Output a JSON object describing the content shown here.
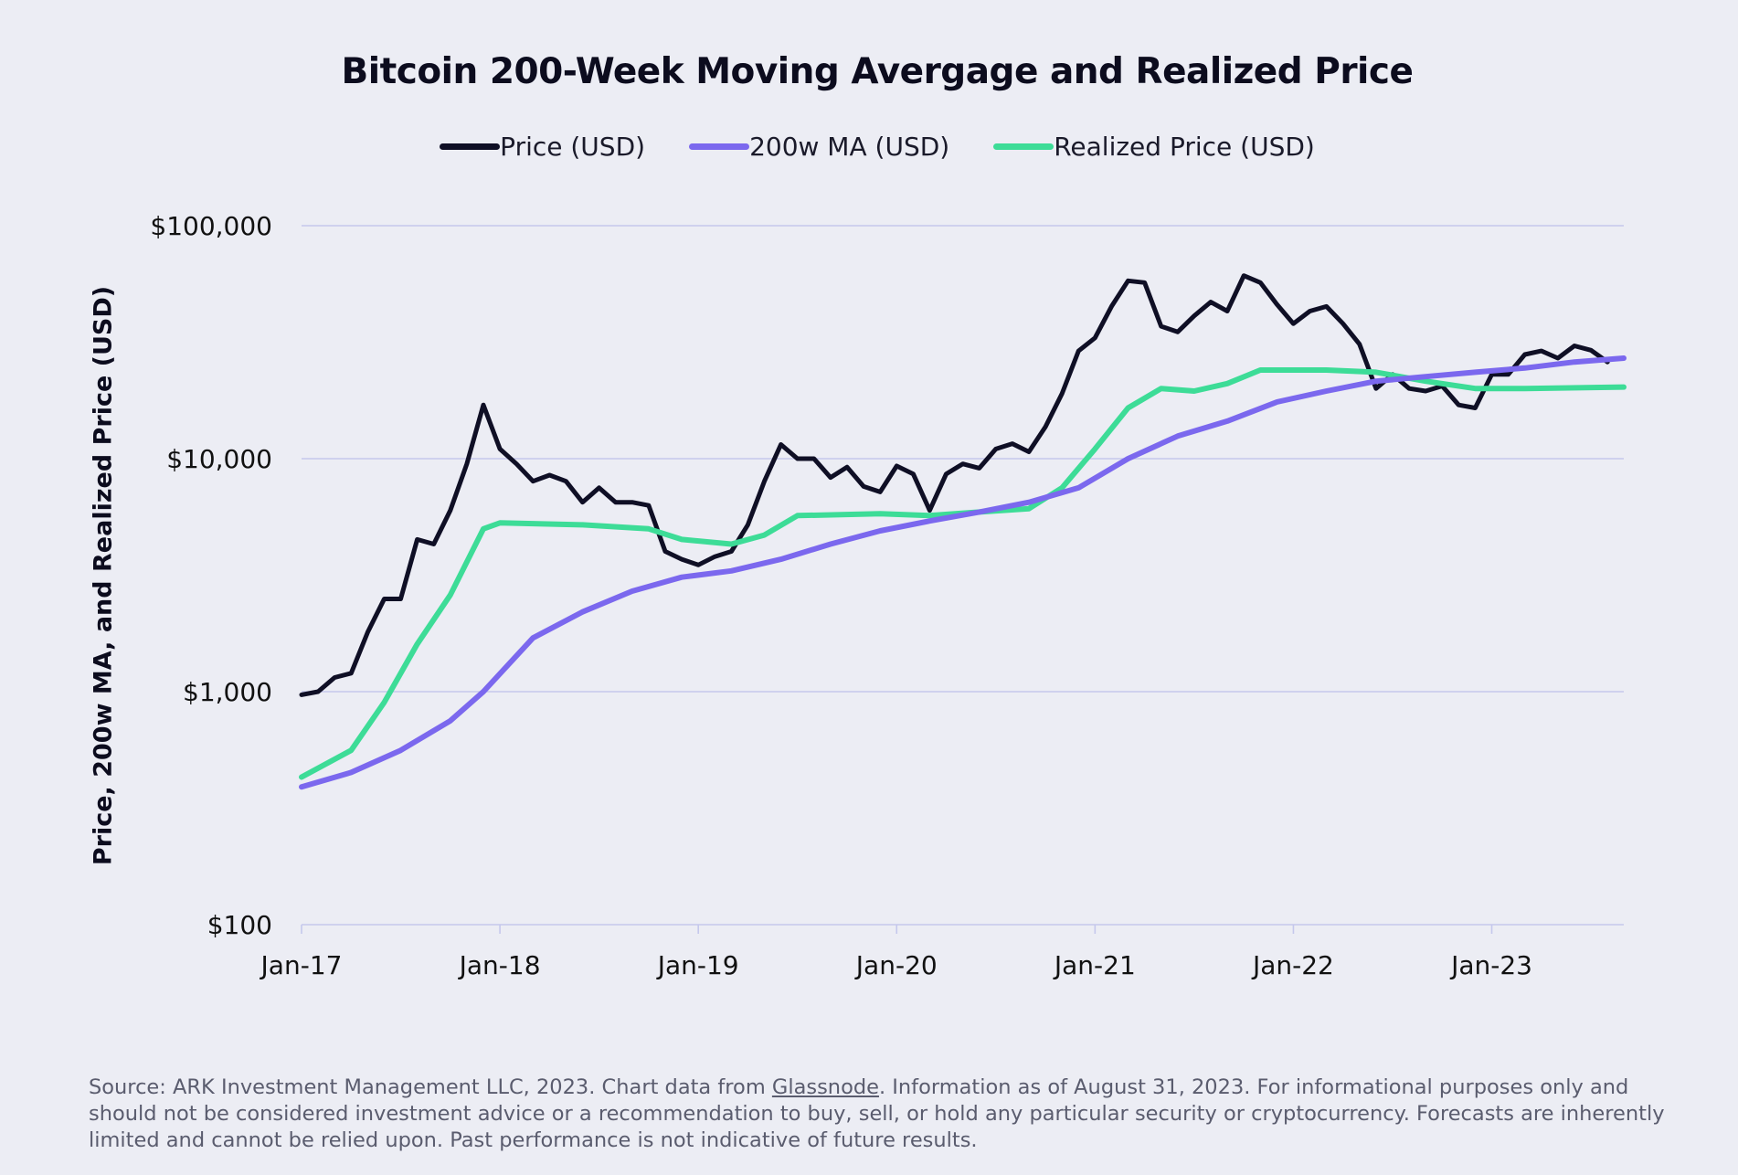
{
  "chart_data": {
    "type": "line",
    "title": "Bitcoin 200-Week Moving Avergage and Realized Price",
    "ylabel": "Price, 200w MA, and Realized Price (USD)",
    "xlabel": "",
    "yscale": "log",
    "ylim": [
      100,
      100000
    ],
    "xlim": [
      "2017-01",
      "2023-08-31"
    ],
    "y_ticks": [
      {
        "value": 100,
        "label": "$100"
      },
      {
        "value": 1000,
        "label": "$1,000"
      },
      {
        "value": 10000,
        "label": "$10,000"
      },
      {
        "value": 100000,
        "label": "$100,000"
      }
    ],
    "x_ticks": [
      {
        "value": "2017-01",
        "label": "Jan-17"
      },
      {
        "value": "2018-01",
        "label": "Jan-18"
      },
      {
        "value": "2019-01",
        "label": "Jan-19"
      },
      {
        "value": "2020-01",
        "label": "Jan-20"
      },
      {
        "value": "2021-01",
        "label": "Jan-21"
      },
      {
        "value": "2022-01",
        "label": "Jan-22"
      },
      {
        "value": "2023-01",
        "label": "Jan-23"
      }
    ],
    "grid": true,
    "legend_position": "top-center",
    "series": [
      {
        "name": "Price (USD)",
        "color": "#0f0f25",
        "x": [
          "2017-01",
          "2017-02",
          "2017-03",
          "2017-04",
          "2017-05",
          "2017-06",
          "2017-07",
          "2017-08",
          "2017-09",
          "2017-10",
          "2017-11",
          "2017-12",
          "2018-01",
          "2018-02",
          "2018-03",
          "2018-04",
          "2018-05",
          "2018-06",
          "2018-07",
          "2018-08",
          "2018-09",
          "2018-10",
          "2018-11",
          "2018-12",
          "2019-01",
          "2019-02",
          "2019-03",
          "2019-04",
          "2019-05",
          "2019-06",
          "2019-07",
          "2019-08",
          "2019-09",
          "2019-10",
          "2019-11",
          "2019-12",
          "2020-01",
          "2020-02",
          "2020-03",
          "2020-04",
          "2020-05",
          "2020-06",
          "2020-07",
          "2020-08",
          "2020-09",
          "2020-10",
          "2020-11",
          "2020-12",
          "2021-01",
          "2021-02",
          "2021-03",
          "2021-04",
          "2021-05",
          "2021-06",
          "2021-07",
          "2021-08",
          "2021-09",
          "2021-10",
          "2021-11",
          "2021-12",
          "2022-01",
          "2022-02",
          "2022-03",
          "2022-04",
          "2022-05",
          "2022-06",
          "2022-07",
          "2022-08",
          "2022-09",
          "2022-10",
          "2022-11",
          "2022-12",
          "2023-01",
          "2023-02",
          "2023-03",
          "2023-04",
          "2023-05",
          "2023-06",
          "2023-07",
          "2023-08"
        ],
        "values": [
          970,
          1000,
          1150,
          1200,
          1800,
          2500,
          2500,
          4500,
          4300,
          6000,
          9500,
          17000,
          11000,
          9500,
          8000,
          8500,
          8000,
          6500,
          7500,
          6500,
          6500,
          6300,
          4000,
          3700,
          3500,
          3800,
          4000,
          5200,
          8000,
          11500,
          10000,
          10000,
          8300,
          9200,
          7600,
          7200,
          9300,
          8600,
          6000,
          8600,
          9500,
          9100,
          11000,
          11600,
          10700,
          13700,
          19000,
          29000,
          33000,
          45000,
          58000,
          57000,
          37000,
          35000,
          41000,
          47000,
          43000,
          61000,
          57000,
          46000,
          38000,
          43000,
          45000,
          38000,
          31000,
          20000,
          23000,
          20000,
          19500,
          20500,
          17000,
          16500,
          23000,
          23000,
          28000,
          29000,
          27000,
          30500,
          29200,
          26000
        ]
      },
      {
        "name": "200w MA (USD)",
        "color": "#7b68ee",
        "x": [
          "2017-01",
          "2017-04",
          "2017-07",
          "2017-10",
          "2017-12",
          "2018-03",
          "2018-06",
          "2018-09",
          "2018-12",
          "2019-03",
          "2019-06",
          "2019-09",
          "2019-12",
          "2020-03",
          "2020-06",
          "2020-09",
          "2020-12",
          "2021-03",
          "2021-06",
          "2021-09",
          "2021-12",
          "2022-03",
          "2022-06",
          "2022-09",
          "2022-12",
          "2023-03",
          "2023-06",
          "2023-08-31"
        ],
        "values": [
          390,
          450,
          560,
          750,
          1000,
          1700,
          2200,
          2700,
          3100,
          3300,
          3700,
          4300,
          4900,
          5400,
          5900,
          6500,
          7500,
          10000,
          12500,
          14500,
          17500,
          19500,
          21500,
          22500,
          23500,
          24500,
          26000,
          27000
        ]
      },
      {
        "name": "Realized Price (USD)",
        "color": "#3ddc97",
        "x": [
          "2017-01",
          "2017-04",
          "2017-06",
          "2017-08",
          "2017-10",
          "2017-12",
          "2018-01",
          "2018-06",
          "2018-10",
          "2018-12",
          "2019-03",
          "2019-05",
          "2019-07",
          "2019-12",
          "2020-03",
          "2020-06",
          "2020-09",
          "2020-11",
          "2021-01",
          "2021-03",
          "2021-05",
          "2021-07",
          "2021-09",
          "2021-11",
          "2022-03",
          "2022-06",
          "2022-09",
          "2022-12",
          "2023-03",
          "2023-08-31"
        ],
        "values": [
          430,
          560,
          900,
          1600,
          2600,
          5000,
          5300,
          5200,
          5000,
          4500,
          4300,
          4700,
          5700,
          5800,
          5700,
          5900,
          6100,
          7500,
          11000,
          16500,
          20000,
          19500,
          21000,
          24000,
          24000,
          23500,
          21500,
          20000,
          20000,
          20300
        ]
      }
    ]
  },
  "footer": {
    "before_link": "Source: ARK Investment Management LLC, 2023. Chart data from ",
    "link": "Glassnode",
    "after_link": ". Information as of August 31, 2023. For informational purposes only and should not be considered investment advice or a recommendation to buy, sell, or hold any particular security or cryptocurrency. Forecasts are inherently limited and cannot be relied upon. Past performance is not indicative of future results."
  }
}
